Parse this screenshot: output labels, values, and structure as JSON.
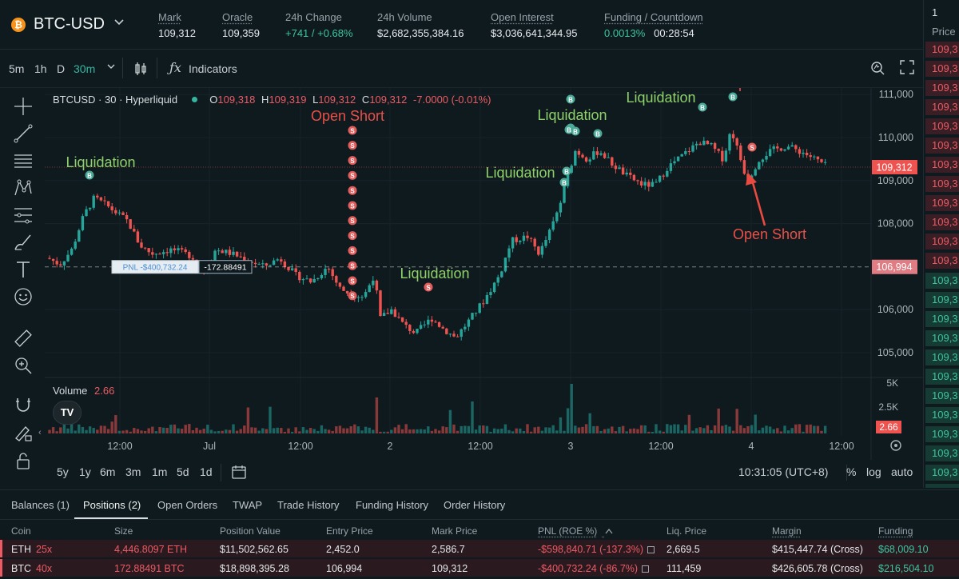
{
  "header": {
    "coin_icon": "₿",
    "pair": "BTC-USD",
    "stats": [
      {
        "label": "Mark",
        "value": "109,312",
        "underline": true
      },
      {
        "label": "Oracle",
        "value": "109,359",
        "underline": true
      },
      {
        "label": "24h Change",
        "value": "+741 / +0.68%",
        "underline": false,
        "color": "green"
      },
      {
        "label": "24h Volume",
        "value": "$2,682,355,384.16",
        "underline": false
      },
      {
        "label": "Open Interest",
        "value": "$3,036,641,344.95",
        "underline": true
      },
      {
        "label": "Funding / Countdown",
        "value_a": "0.0013%",
        "value_b": "00:28:54",
        "underline": true
      }
    ]
  },
  "toolbar": {
    "intervals": [
      "5m",
      "1h",
      "D",
      "30m"
    ],
    "active_interval": "30m",
    "indicators_label": "Indicators"
  },
  "legend": {
    "symbol": "BTCUSD · 30 · Hyperliquid",
    "o_label": "O",
    "o": "109,318",
    "h_label": "H",
    "h": "109,319",
    "l_label": "L",
    "l": "109,312",
    "c_label": "C",
    "c": "109,312",
    "change": "-7.0000 (-0.01%)"
  },
  "chart_data": {
    "type": "candlestick",
    "y_ticks": [
      "111,000",
      "110,000",
      "109,000",
      "108,000",
      "106,000",
      "105,000"
    ],
    "x_ticks": [
      "12:00",
      "Jul",
      "12:00",
      "2",
      "12:00",
      "3",
      "12:00",
      "4",
      "12:00"
    ],
    "current_price_label": "109,312",
    "entry_price_label": "106,994",
    "volume_label": "Volume",
    "volume_value": "2.66",
    "volume_ticks": [
      "5K",
      "2.5K"
    ],
    "volume_current": "2.66",
    "pnl_tag": "PNL -$400,732.24",
    "size_tag": "-172.88491",
    "annotations": [
      {
        "text": "Liquidation",
        "color": "green"
      },
      {
        "text": "Open Short",
        "color": "red"
      },
      {
        "text": "Liquidation",
        "color": "green"
      },
      {
        "text": "Liquidation",
        "color": "green"
      },
      {
        "text": "Liquidation",
        "color": "green"
      },
      {
        "text": "Liquidation",
        "color": "green"
      },
      {
        "text": "Open Short",
        "color": "red"
      },
      {
        "text": "Open Short",
        "color": "red"
      }
    ],
    "marker_letters": {
      "buy": "B",
      "sell": "S"
    }
  },
  "orderbook": {
    "size_value": "1",
    "price_label": "Price",
    "ask_value": "109,3",
    "bid_value": "109,3",
    "ask_count": 12,
    "bid_count": 12
  },
  "range_bar": {
    "ranges": [
      "5y",
      "1y",
      "6m",
      "3m",
      "1m",
      "5d",
      "1d"
    ],
    "clock": "10:31:05 (UTC+8)",
    "percent": "%",
    "log": "log",
    "auto": "auto"
  },
  "tabs": [
    "Balances (1)",
    "Positions (2)",
    "Open Orders",
    "TWAP",
    "Trade History",
    "Funding History",
    "Order History"
  ],
  "active_tab": "Positions (2)",
  "table": {
    "columns": [
      "Coin",
      "Size",
      "Position Value",
      "Entry Price",
      "Mark Price",
      "PNL (ROE %)",
      "Liq. Price",
      "Margin",
      "Funding"
    ],
    "rows": [
      {
        "coin": "ETH",
        "leverage": "25x",
        "size": "4,446.8097 ETH",
        "value": "$11,502,562.65",
        "entry": "2,452.0",
        "mark": "2,586.7",
        "pnl": "-$598,840.71 (-137.3%)",
        "liq": "2,669.5",
        "margin": "$415,447.74 (Cross)",
        "funding": "$68,009.10"
      },
      {
        "coin": "BTC",
        "leverage": "40x",
        "size": "172.88491 BTC",
        "value": "$18,898,395.28",
        "entry": "106,994",
        "mark": "109,312",
        "pnl": "-$400,732.24 (-86.7%)",
        "liq": "111,459",
        "margin": "$426,605.78 (Cross)",
        "funding": "$216,504.10"
      }
    ]
  },
  "colors": {
    "up": "#26a69a",
    "down": "#ef5350",
    "accent": "#36b6a0",
    "bg": "#0f1a1f"
  }
}
